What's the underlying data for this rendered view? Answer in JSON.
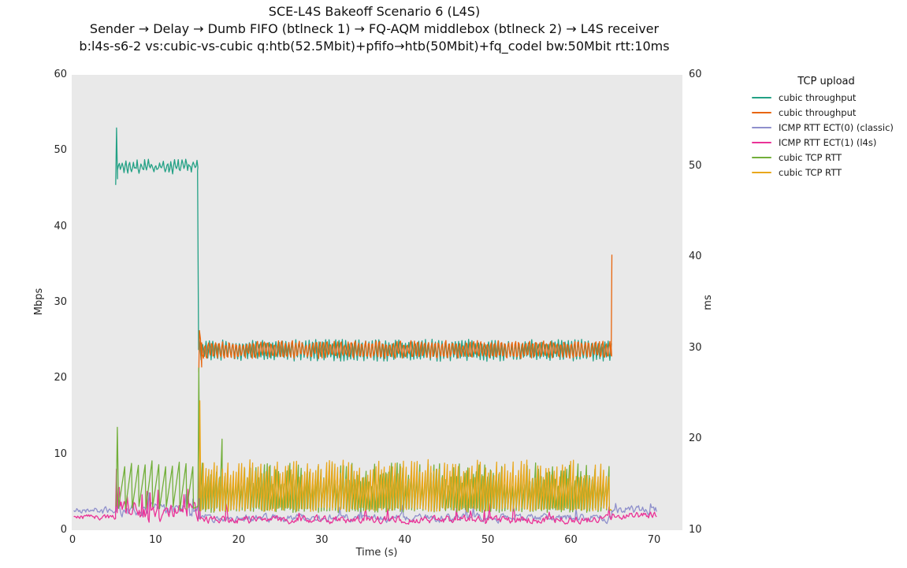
{
  "chart_data": {
    "type": "line",
    "title_lines": [
      "SCE-L4S Bakeoff Scenario 6 (L4S)",
      "Sender → Delay → Dumb FIFO (btlneck 1) → FQ-AQM middlebox (btlneck 2) → L4S receiver",
      "b:l4s-s6-2 vs:cubic-vs-cubic q:htb(52.5Mbit)+pfifo→htb(50Mbit)+fq_codel bw:50Mbit rtt:10ms"
    ],
    "xlabel": "Time (s)",
    "x_ticks": [
      0,
      10,
      20,
      30,
      40,
      50,
      60,
      70
    ],
    "x_range": [
      0,
      73.5
    ],
    "y_left": {
      "label": "Mbps",
      "ticks": [
        0,
        10,
        20,
        30,
        40,
        50,
        60
      ],
      "range": [
        0,
        60
      ]
    },
    "y_right": {
      "label": "ms",
      "ticks": [
        10,
        20,
        30,
        40,
        50,
        60
      ],
      "range": [
        10,
        60
      ]
    },
    "grid": false,
    "plot_bg": "#e9e9e9",
    "legend": {
      "title": "TCP upload",
      "position": "right"
    },
    "series": [
      {
        "id": "cubic-throughput-1",
        "label": "cubic throughput",
        "color": "#23a185",
        "unit": "mbps",
        "seed": 7,
        "segments": [
          {
            "type": "path",
            "points": [
              [
                5.2,
                45.5
              ],
              [
                5.3,
                53.0
              ],
              [
                5.42,
                46.3
              ]
            ]
          },
          {
            "type": "osc",
            "t0": 5.42,
            "t1": 15.05,
            "mean": 47.9,
            "amp": 0.55,
            "period": 0.45,
            "noise": 0.45
          },
          {
            "type": "path",
            "points": [
              [
                15.05,
                47.4
              ],
              [
                15.18,
                24.3
              ]
            ]
          },
          {
            "type": "osc",
            "t0": 15.18,
            "t1": 64.92,
            "mean": 23.7,
            "amp": 1.1,
            "period": 0.4,
            "noise": 0.35
          }
        ]
      },
      {
        "id": "cubic-throughput-2",
        "label": "cubic throughput",
        "color": "#e8650d",
        "unit": "mbps",
        "seed": 13,
        "segments": [
          {
            "type": "path",
            "points": [
              [
                15.2,
                20.8
              ],
              [
                15.28,
                26.3
              ],
              [
                15.4,
                25.2
              ],
              [
                15.55,
                21.5
              ]
            ]
          },
          {
            "type": "osc",
            "t0": 15.55,
            "t1": 64.85,
            "mean": 23.8,
            "amp": 1.05,
            "period": 0.42,
            "noise": 0.35,
            "phase": 2.2
          },
          {
            "type": "path",
            "points": [
              [
                64.85,
                24.0
              ],
              [
                64.93,
                36.3
              ]
            ]
          }
        ]
      },
      {
        "id": "icmp-rtt-ect0-classic",
        "label": "ICMP RTT ECT(0) (classic)",
        "color": "#8f90cc",
        "unit": "ms",
        "seed": 21,
        "segments": [
          {
            "type": "noise",
            "t0": 0.15,
            "t1": 5.25,
            "mean": 12.2,
            "amp": 0.35,
            "spikes": 2,
            "spike_amp": 0.5
          },
          {
            "type": "noise",
            "t0": 5.25,
            "t1": 15.25,
            "mean": 12.4,
            "amp": 0.7,
            "spikes": 8,
            "spike_amp": 1.3
          },
          {
            "type": "noise",
            "t0": 15.25,
            "t1": 64.9,
            "mean": 11.35,
            "amp": 0.4,
            "spikes": 14,
            "spike_amp": 0.9
          },
          {
            "type": "noise",
            "t0": 64.9,
            "t1": 70.35,
            "mean": 12.2,
            "amp": 0.45,
            "spikes": 2,
            "spike_amp": 0.6
          }
        ]
      },
      {
        "id": "icmp-rtt-ect1-l4s",
        "label": "ICMP RTT ECT(1) (l4s)",
        "color": "#ea3397",
        "unit": "ms",
        "seed": 33,
        "segments": [
          {
            "type": "noise",
            "t0": 0.15,
            "t1": 5.15,
            "mean": 11.45,
            "amp": 0.3
          },
          {
            "type": "path",
            "points": [
              [
                5.18,
                11.6
              ],
              [
                5.28,
                16.7
              ],
              [
                5.38,
                12.2
              ]
            ]
          },
          {
            "type": "noise",
            "t0": 5.38,
            "t1": 15.15,
            "mean": 12.1,
            "amp": 0.9,
            "spikes": 10,
            "spike_amp": 2.2
          },
          {
            "type": "path",
            "points": [
              [
                15.18,
                12.2
              ],
              [
                15.28,
                16.6
              ],
              [
                15.38,
                11.2
              ]
            ]
          },
          {
            "type": "noise",
            "t0": 15.38,
            "t1": 64.9,
            "mean": 11.15,
            "amp": 0.4,
            "spikes": 16,
            "spike_amp": 1.1
          },
          {
            "type": "noise",
            "t0": 64.9,
            "t1": 70.35,
            "mean": 11.6,
            "amp": 0.35
          }
        ]
      },
      {
        "id": "cubic-tcp-rtt-1",
        "label": "cubic TCP RTT",
        "color": "#72af3a",
        "unit": "ms",
        "seed": 45,
        "segments": [
          {
            "type": "path",
            "points": [
              [
                5.25,
                12.6
              ],
              [
                5.4,
                21.3
              ],
              [
                5.55,
                12.4
              ]
            ]
          },
          {
            "type": "saw",
            "t0": 5.55,
            "t1": 15.1,
            "min": 12.4,
            "max": 17.7,
            "period": 0.82,
            "peak_jitter": 0.8
          },
          {
            "type": "path",
            "points": [
              [
                15.1,
                12.6
              ],
              [
                15.2,
                27.8
              ],
              [
                15.32,
                13.2
              ]
            ]
          },
          {
            "type": "saw",
            "t0": 15.32,
            "t1": 64.88,
            "min": 12.2,
            "max": 17.4,
            "period": 0.34,
            "peak_jitter": 2.6,
            "tall_chance": 0.012,
            "tall_peak": 20.0
          },
          {
            "type": "path",
            "points": [
              [
                64.88,
                12.2
              ]
            ]
          }
        ]
      },
      {
        "id": "cubic-tcp-rtt-2",
        "label": "cubic TCP RTT",
        "color": "#e9a71c",
        "unit": "ms",
        "seed": 57,
        "segments": [
          {
            "type": "path",
            "points": [
              [
                15.26,
                13.5
              ],
              [
                15.33,
                24.2
              ],
              [
                15.45,
                13.0
              ]
            ]
          },
          {
            "type": "saw",
            "t0": 15.45,
            "t1": 64.86,
            "min": 12.3,
            "max": 17.8,
            "period": 0.33,
            "peak_jitter": 2.2,
            "tall_chance": 0.008,
            "tall_peak": 19.0
          },
          {
            "type": "path",
            "points": [
              [
                64.9,
                12.2
              ]
            ]
          }
        ]
      }
    ]
  }
}
